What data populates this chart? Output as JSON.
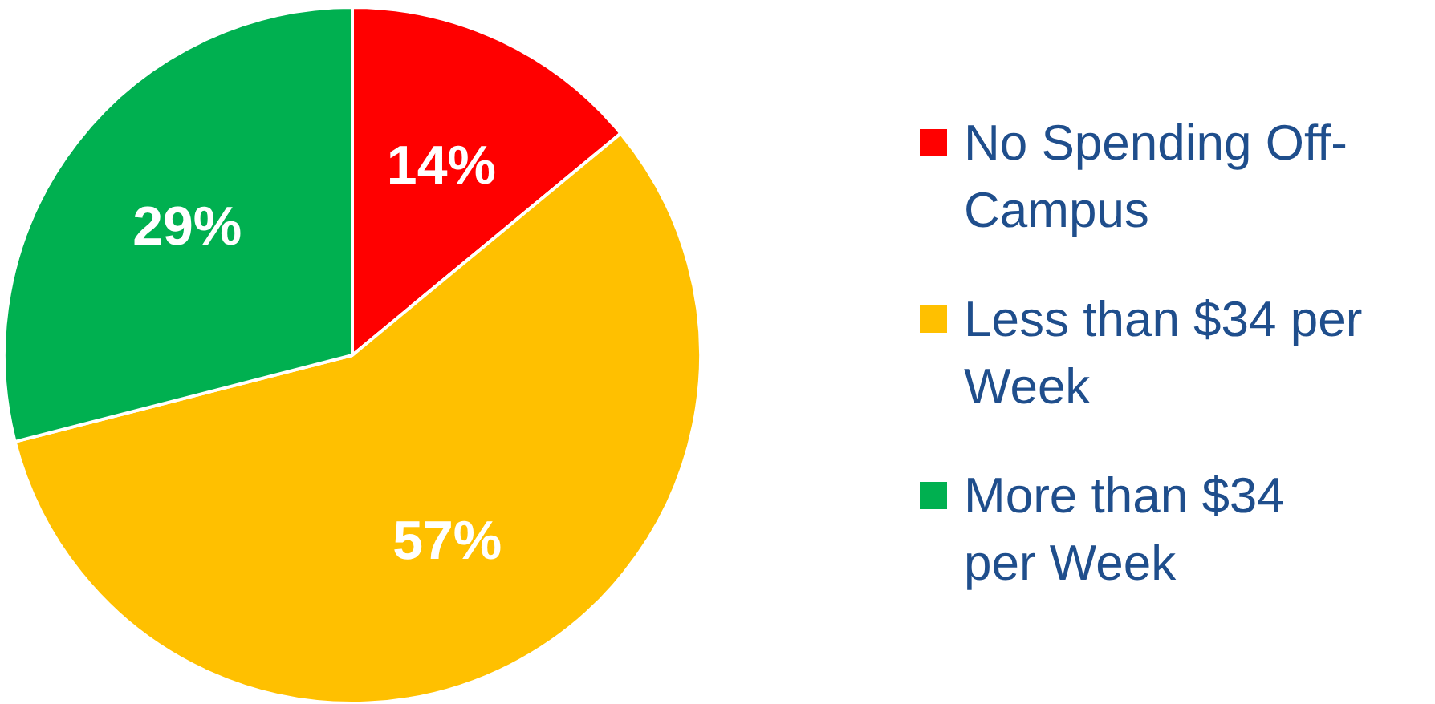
{
  "chart_data": {
    "type": "pie",
    "categories": [
      "No Spending Off-Campus",
      "Less than $34 per Week",
      " More than $34 per Week"
    ],
    "values": [
      14,
      57,
      29
    ],
    "colors": [
      "#ff0000",
      "#ffc000",
      "#00b050"
    ],
    "value_labels": [
      "14%",
      "57%",
      "29%"
    ],
    "legend": "right"
  }
}
